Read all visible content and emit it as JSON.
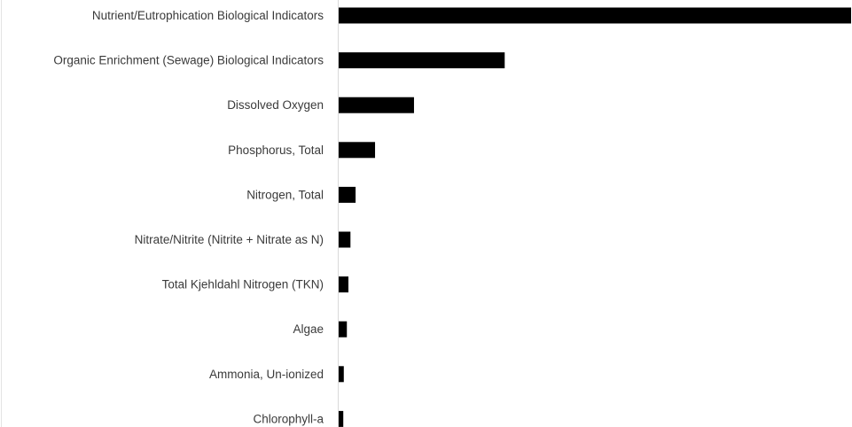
{
  "chart_data": {
    "type": "bar",
    "orientation": "horizontal",
    "categories": [
      "Nutrient/Eutrophication Biological Indicators",
      "Organic Enrichment (Sewage) Biological Indicators",
      "Dissolved Oxygen",
      "Phosphorus, Total",
      "Nitrogen, Total",
      "Nitrate/Nitrite (Nitrite + Nitrate as N)",
      "Total Kjehldahl Nitrogen (TKN)",
      "Algae",
      "Ammonia, Un-ionized",
      "Chlorophyll-a"
    ],
    "values": [
      100,
      32.4,
      14.7,
      7.1,
      3.3,
      2.3,
      1.9,
      1.6,
      1.0,
      0.9
    ],
    "bar_color": "#000000",
    "label_color": "#3a3a3a",
    "axis_line_color": "#d9d9d9",
    "grid": false,
    "legend": "none",
    "xlim": [
      0,
      100
    ]
  }
}
